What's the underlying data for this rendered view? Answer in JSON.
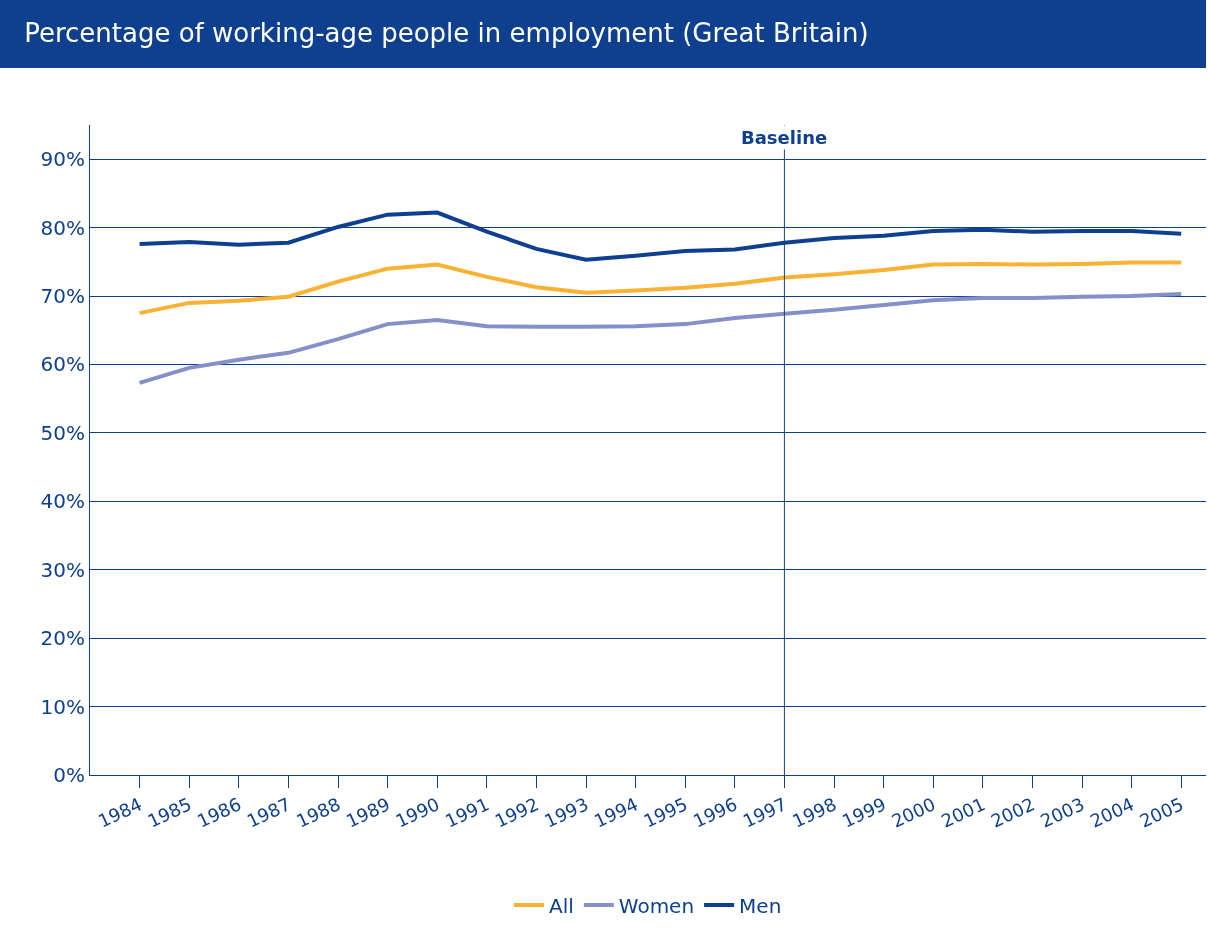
{
  "chart_data": {
    "type": "line",
    "title": "Percentage of working-age people in employment (Great Britain)",
    "categories": [
      "1984",
      "1985",
      "1986",
      "1987",
      "1988",
      "1989",
      "1990",
      "1991",
      "1992",
      "1993",
      "1994",
      "1995",
      "1996",
      "1997",
      "1998",
      "1999",
      "2000",
      "2001",
      "2002",
      "2003",
      "2004",
      "2005"
    ],
    "series": [
      {
        "name": "All",
        "color": "#f9b233",
        "values": [
          67.5,
          69.0,
          69.3,
          69.9,
          72.1,
          74.0,
          74.6,
          72.8,
          71.3,
          70.5,
          70.8,
          71.2,
          71.8,
          72.7,
          73.2,
          73.8,
          74.6,
          74.7,
          74.6,
          74.7,
          74.9,
          74.9
        ]
      },
      {
        "name": "Women",
        "color": "#8490c8",
        "values": [
          57.3,
          59.5,
          60.7,
          61.7,
          63.7,
          65.9,
          66.5,
          65.6,
          65.5,
          65.5,
          65.6,
          65.9,
          66.8,
          67.4,
          68.0,
          68.7,
          69.4,
          69.7,
          69.7,
          69.9,
          70.0,
          70.3
        ]
      },
      {
        "name": "Men",
        "color": "#0f3f8f",
        "values": [
          77.6,
          77.9,
          77.5,
          77.8,
          80.1,
          81.9,
          82.2,
          79.4,
          76.9,
          75.3,
          75.9,
          76.6,
          76.8,
          77.8,
          78.5,
          78.8,
          79.5,
          79.7,
          79.4,
          79.5,
          79.5,
          79.1
        ]
      }
    ],
    "ylim": [
      0,
      95
    ],
    "yticks": [
      {
        "value": 0,
        "label": "0%"
      },
      {
        "value": 10,
        "label": "10%"
      },
      {
        "value": 20,
        "label": "20%"
      },
      {
        "value": 30,
        "label": "30%"
      },
      {
        "value": 40,
        "label": "40%"
      },
      {
        "value": 50,
        "label": "50%"
      },
      {
        "value": 60,
        "label": "60%"
      },
      {
        "value": 70,
        "label": "70%"
      },
      {
        "value": 80,
        "label": "80%"
      },
      {
        "value": 90,
        "label": "90%"
      }
    ],
    "ref_lines": [
      {
        "axis": "x",
        "value": "1997",
        "label": "Baseline",
        "color": "#0f3f8f"
      }
    ],
    "grid": "y",
    "legend": "bottom",
    "marker": "none",
    "line_style": "solid"
  }
}
